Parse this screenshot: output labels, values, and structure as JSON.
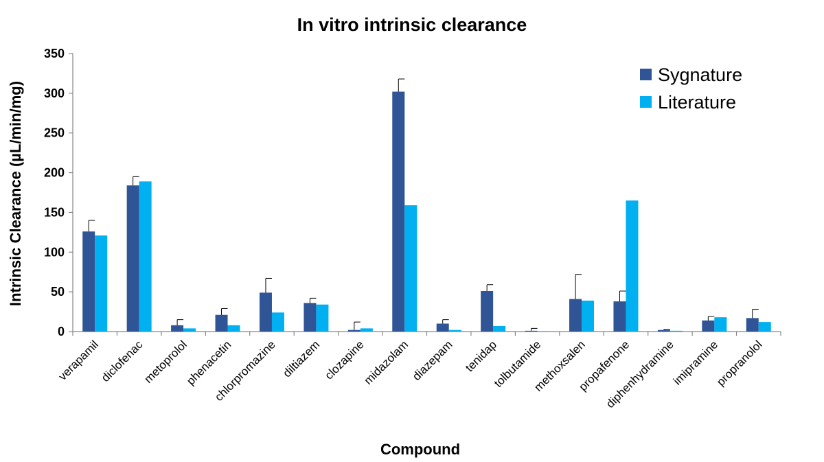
{
  "chart_data": {
    "type": "bar",
    "title": "In vitro intrinsic clearance",
    "xlabel": "Compound",
    "ylabel": "Intrinsic Clearance (µL/min/mg)",
    "ylim": [
      0,
      350
    ],
    "yticks": [
      0,
      50,
      100,
      150,
      200,
      250,
      300,
      350
    ],
    "grid": false,
    "legend_position": "top-right",
    "categories": [
      "verapamil",
      "diclofenac",
      "metoprolol",
      "phenacetin",
      "chlorpromazine",
      "diltiazem",
      "clozapine",
      "midazolam",
      "diazepam",
      "tenidap",
      "tolbutamide",
      "methoxsalen",
      "propafenone",
      "diphenhydramine",
      "imipramine",
      "propranolol"
    ],
    "series": [
      {
        "name": "Sygnature",
        "color": "#2f5597",
        "values": [
          126,
          184,
          8,
          21,
          49,
          36,
          2,
          302,
          10,
          51,
          1,
          41,
          38,
          2,
          14,
          17
        ],
        "error": [
          14,
          11,
          7,
          8,
          18,
          6,
          10,
          16,
          5,
          8,
          3,
          31,
          13,
          1,
          5,
          11
        ]
      },
      {
        "name": "Literature",
        "color": "#00b0f0",
        "values": [
          121,
          189,
          4,
          8,
          24,
          34,
          4,
          159,
          2,
          7,
          0.5,
          39,
          165,
          1,
          18,
          12
        ]
      }
    ]
  }
}
